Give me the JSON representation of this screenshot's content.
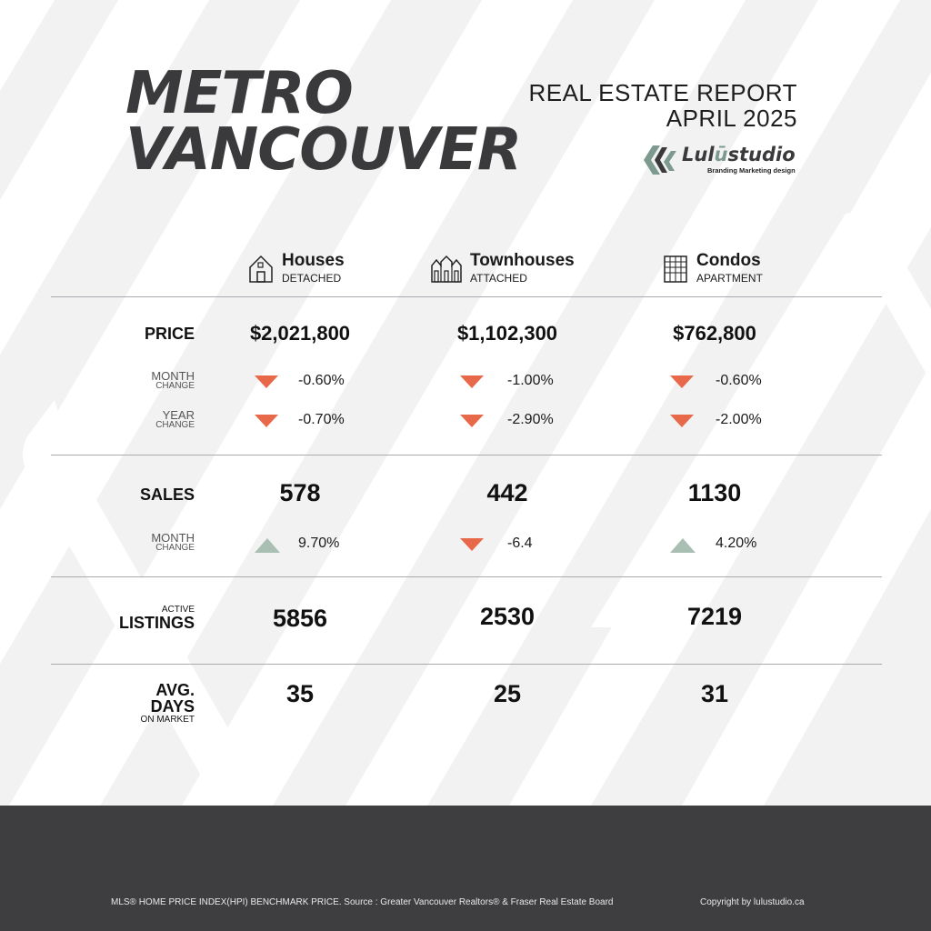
{
  "header": {
    "title_line1": "METRO",
    "title_line2": "VANCOUVER",
    "report_line1": "REAL ESTATE REPORT",
    "report_line2": "APRIL 2025",
    "logo_name_prefix": "Lul",
    "logo_name_accent": "ū",
    "logo_name_suffix": "studio",
    "logo_tagline": "Branding Marketing design"
  },
  "columns": [
    {
      "name": "Houses",
      "sub": "DETACHED",
      "icon": "house-icon"
    },
    {
      "name": "Townhouses",
      "sub": "ATTACHED",
      "icon": "townhouse-icon"
    },
    {
      "name": "Condos",
      "sub": "APARTMENT",
      "icon": "condo-building-icon"
    }
  ],
  "labels": {
    "price": "PRICE",
    "month": "MONTH",
    "year": "YEAR",
    "change": "CHANGE",
    "sales": "SALES",
    "active": "ACTIVE",
    "listings": "LISTINGS",
    "avg": "AVG.",
    "days": "DAYS",
    "on_market": "ON MARKET"
  },
  "price": {
    "values": [
      "$2,021,800",
      "$1,102,300",
      "$762,800"
    ],
    "month_change": [
      {
        "text": "-0.60%",
        "dir": "down"
      },
      {
        "text": "-1.00%",
        "dir": "down"
      },
      {
        "text": "-0.60%",
        "dir": "down"
      }
    ],
    "year_change": [
      {
        "text": "-0.70%",
        "dir": "down"
      },
      {
        "text": "-2.90%",
        "dir": "down"
      },
      {
        "text": "-2.00%",
        "dir": "down"
      }
    ]
  },
  "sales": {
    "values": [
      "578",
      "442",
      "1130"
    ],
    "month_change": [
      {
        "text": "9.70%",
        "dir": "up"
      },
      {
        "text": "-6.4",
        "dir": "down"
      },
      {
        "text": "4.20%",
        "dir": "up"
      }
    ]
  },
  "listings": {
    "values": [
      "5856",
      "2530",
      "7219"
    ]
  },
  "days": {
    "values": [
      "35",
      "25",
      "31"
    ]
  },
  "footer": {
    "source": "MLS® HOME PRICE INDEX(HPI) BENCHMARK PRICE.  Source : Greater Vancouver Realtors® & Fraser Real Estate Board",
    "copyright": "Copyright by  lulustudio.ca"
  },
  "colors": {
    "down": "#e8694a",
    "up": "#a9bfb4",
    "footer_bg": "#3e3e40",
    "title": "#3a3a3c"
  }
}
